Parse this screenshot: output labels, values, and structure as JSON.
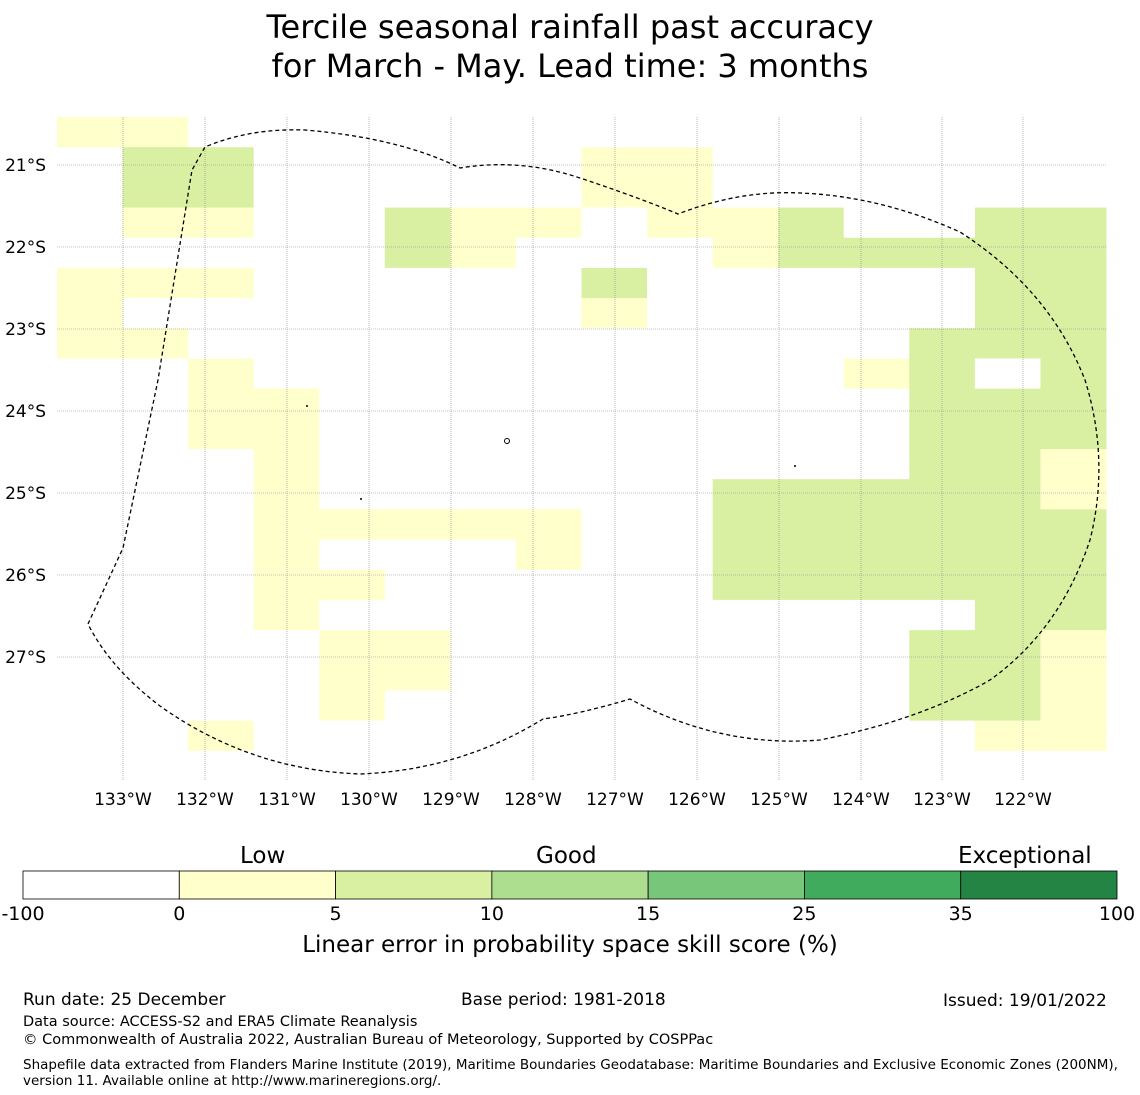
{
  "title": {
    "line1": "Tercile seasonal rainfall past accuracy",
    "line2": "for March - May. Lead time: 3 months"
  },
  "map": {
    "lat_labels": [
      "21°S",
      "22°S",
      "23°S",
      "24°S",
      "25°S",
      "26°S",
      "27°S"
    ],
    "lon_labels": [
      "133°W",
      "132°W",
      "131°W",
      "130°W",
      "129°W",
      "128°W",
      "127°W",
      "126°W",
      "125°W",
      "124°W",
      "123°W",
      "122°W"
    ],
    "grid_rows": [
      "1100000000000000",
      "0220000011000000",
      "0220000011000000",
      "0110021101120022",
      "0000021000122222",
      "1110000020000022",
      "1000000010000022",
      "1100000000000222",
      "0010000000001202",
      "0011000000000222",
      "0011000000000222",
      "0001000000000221",
      "0001000000222221",
      "0001111100222222",
      "0001000100222222",
      "0001100000222222",
      "0001000000000022",
      "0000110000000221",
      "0000110000000221",
      "0000100000000221",
      "0010000000000011",
      "0000000000000000"
    ],
    "grid_cells": []
  },
  "colorbar": {
    "category_low": "Low",
    "category_good": "Good",
    "category_exceptional": "Exceptional",
    "bins": [
      {
        "color": "#ffffff"
      },
      {
        "color": "#ffffcc"
      },
      {
        "color": "#d9f0a3"
      },
      {
        "color": "#addd8e"
      },
      {
        "color": "#78c679"
      },
      {
        "color": "#41ab5d"
      },
      {
        "color": "#238443"
      }
    ],
    "ticks": [
      "-100",
      "0",
      "5",
      "10",
      "15",
      "25",
      "35",
      "100"
    ],
    "label": "Linear error in probability space skill score (%)"
  },
  "footer": {
    "run_date": "Run date: 25 December",
    "base_period": "Base period: 1981-2018",
    "issued": "Issued: 19/01/2022",
    "data_source": "Data source: ACCESS-S2 and ERA5 Climate Reanalysis",
    "copyright": "© Commonwealth of Australia 2022, Australian Bureau of Meteorology, Supported by COSPPac",
    "shapefile": "Shapefile data extracted from Flanders Marine Institute (2019), Maritime Boundaries Geodatabase: Maritime Boundaries and Exclusive Economic Zones (200NM), version 11. Available online at http://www.marineregions.org/."
  }
}
